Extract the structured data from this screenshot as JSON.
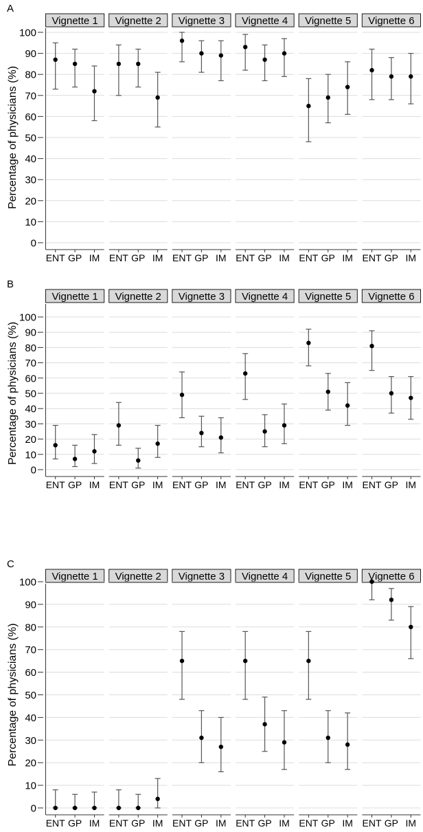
{
  "chart_data": [
    {
      "type": "scatter",
      "panel_label": "A",
      "ylabel": "Percentage of physicians (%)",
      "ylim": [
        0,
        100
      ],
      "yticks": [
        0,
        10,
        20,
        30,
        40,
        50,
        60,
        70,
        80,
        90,
        100
      ],
      "categories": [
        "ENT",
        "GP",
        "IM"
      ],
      "grid": true,
      "facets": [
        {
          "title": "Vignette 1",
          "points": [
            {
              "x": "ENT",
              "y": 87,
              "lo": 73,
              "hi": 95
            },
            {
              "x": "GP",
              "y": 85,
              "lo": 74,
              "hi": 92
            },
            {
              "x": "IM",
              "y": 72,
              "lo": 58,
              "hi": 84
            }
          ]
        },
        {
          "title": "Vignette 2",
          "points": [
            {
              "x": "ENT",
              "y": 85,
              "lo": 70,
              "hi": 94
            },
            {
              "x": "GP",
              "y": 85,
              "lo": 74,
              "hi": 92
            },
            {
              "x": "IM",
              "y": 69,
              "lo": 55,
              "hi": 81
            }
          ]
        },
        {
          "title": "Vignette 3",
          "points": [
            {
              "x": "ENT",
              "y": 96,
              "lo": 86,
              "hi": 100
            },
            {
              "x": "GP",
              "y": 90,
              "lo": 81,
              "hi": 96
            },
            {
              "x": "IM",
              "y": 89,
              "lo": 77,
              "hi": 96
            }
          ]
        },
        {
          "title": "Vignette 4",
          "points": [
            {
              "x": "ENT",
              "y": 93,
              "lo": 82,
              "hi": 99
            },
            {
              "x": "GP",
              "y": 87,
              "lo": 77,
              "hi": 94
            },
            {
              "x": "IM",
              "y": 90,
              "lo": 79,
              "hi": 97
            }
          ]
        },
        {
          "title": "Vignette 5",
          "points": [
            {
              "x": "ENT",
              "y": 65,
              "lo": 48,
              "hi": 78
            },
            {
              "x": "GP",
              "y": 69,
              "lo": 57,
              "hi": 80
            },
            {
              "x": "IM",
              "y": 74,
              "lo": 61,
              "hi": 86
            }
          ]
        },
        {
          "title": "Vignette 6",
          "points": [
            {
              "x": "ENT",
              "y": 82,
              "lo": 68,
              "hi": 92
            },
            {
              "x": "GP",
              "y": 79,
              "lo": 68,
              "hi": 88
            },
            {
              "x": "IM",
              "y": 79,
              "lo": 66,
              "hi": 90
            }
          ]
        }
      ]
    },
    {
      "type": "scatter",
      "panel_label": "B",
      "ylabel": "Percentage of physicians (%)",
      "ylim": [
        0,
        100
      ],
      "yticks": [
        0,
        10,
        20,
        30,
        40,
        50,
        60,
        70,
        80,
        90,
        100
      ],
      "categories": [
        "ENT",
        "GP",
        "IM"
      ],
      "grid": true,
      "facets": [
        {
          "title": "Vignette 1",
          "points": [
            {
              "x": "ENT",
              "y": 16,
              "lo": 7,
              "hi": 29
            },
            {
              "x": "GP",
              "y": 7,
              "lo": 2,
              "hi": 16
            },
            {
              "x": "IM",
              "y": 12,
              "lo": 4,
              "hi": 23
            }
          ]
        },
        {
          "title": "Vignette 2",
          "points": [
            {
              "x": "ENT",
              "y": 29,
              "lo": 16,
              "hi": 44
            },
            {
              "x": "GP",
              "y": 6,
              "lo": 1,
              "hi": 14
            },
            {
              "x": "IM",
              "y": 17,
              "lo": 8,
              "hi": 29
            }
          ]
        },
        {
          "title": "Vignette 3",
          "points": [
            {
              "x": "ENT",
              "y": 49,
              "lo": 34,
              "hi": 64
            },
            {
              "x": "GP",
              "y": 24,
              "lo": 15,
              "hi": 35
            },
            {
              "x": "IM",
              "y": 21,
              "lo": 11,
              "hi": 34
            }
          ]
        },
        {
          "title": "Vignette 4",
          "points": [
            {
              "x": "ENT",
              "y": 63,
              "lo": 46,
              "hi": 76
            },
            {
              "x": "GP",
              "y": 25,
              "lo": 15,
              "hi": 36
            },
            {
              "x": "IM",
              "y": 29,
              "lo": 17,
              "hi": 43
            }
          ]
        },
        {
          "title": "Vignette 5",
          "points": [
            {
              "x": "ENT",
              "y": 83,
              "lo": 68,
              "hi": 92
            },
            {
              "x": "GP",
              "y": 51,
              "lo": 39,
              "hi": 63
            },
            {
              "x": "IM",
              "y": 42,
              "lo": 29,
              "hi": 57
            }
          ]
        },
        {
          "title": "Vignette 6",
          "points": [
            {
              "x": "ENT",
              "y": 81,
              "lo": 65,
              "hi": 91
            },
            {
              "x": "GP",
              "y": 50,
              "lo": 37,
              "hi": 61
            },
            {
              "x": "IM",
              "y": 47,
              "lo": 33,
              "hi": 61
            }
          ]
        }
      ]
    },
    {
      "type": "scatter",
      "panel_label": "C",
      "ylabel": "Percentage of physicians (%)",
      "ylim": [
        0,
        100
      ],
      "yticks": [
        0,
        10,
        20,
        30,
        40,
        50,
        60,
        70,
        80,
        90,
        100
      ],
      "categories": [
        "ENT",
        "GP",
        "IM"
      ],
      "grid": true,
      "facets": [
        {
          "title": "Vignette 1",
          "points": [
            {
              "x": "ENT",
              "y": 0,
              "lo": 0,
              "hi": 8
            },
            {
              "x": "GP",
              "y": 0,
              "lo": 0,
              "hi": 6
            },
            {
              "x": "IM",
              "y": 0,
              "lo": 0,
              "hi": 7
            }
          ]
        },
        {
          "title": "Vignette 2",
          "points": [
            {
              "x": "ENT",
              "y": 0,
              "lo": 0,
              "hi": 8
            },
            {
              "x": "GP",
              "y": 0,
              "lo": 0,
              "hi": 6
            },
            {
              "x": "IM",
              "y": 4,
              "lo": 0,
              "hi": 13
            }
          ]
        },
        {
          "title": "Vignette 3",
          "points": [
            {
              "x": "ENT",
              "y": 65,
              "lo": 48,
              "hi": 78
            },
            {
              "x": "GP",
              "y": 31,
              "lo": 20,
              "hi": 43
            },
            {
              "x": "IM",
              "y": 27,
              "lo": 16,
              "hi": 40
            }
          ]
        },
        {
          "title": "Vignette 4",
          "points": [
            {
              "x": "ENT",
              "y": 65,
              "lo": 48,
              "hi": 78
            },
            {
              "x": "GP",
              "y": 37,
              "lo": 25,
              "hi": 49
            },
            {
              "x": "IM",
              "y": 29,
              "lo": 17,
              "hi": 43
            }
          ]
        },
        {
          "title": "Vignette 5",
          "points": [
            {
              "x": "ENT",
              "y": 65,
              "lo": 48,
              "hi": 78
            },
            {
              "x": "GP",
              "y": 31,
              "lo": 20,
              "hi": 43
            },
            {
              "x": "IM",
              "y": 28,
              "lo": 17,
              "hi": 42
            }
          ]
        },
        {
          "title": "Vignette 6",
          "points": [
            {
              "x": "ENT",
              "y": 100,
              "lo": 92,
              "hi": 100
            },
            {
              "x": "GP",
              "y": 92,
              "lo": 83,
              "hi": 97
            },
            {
              "x": "IM",
              "y": 80,
              "lo": 66,
              "hi": 89
            }
          ]
        }
      ]
    }
  ]
}
